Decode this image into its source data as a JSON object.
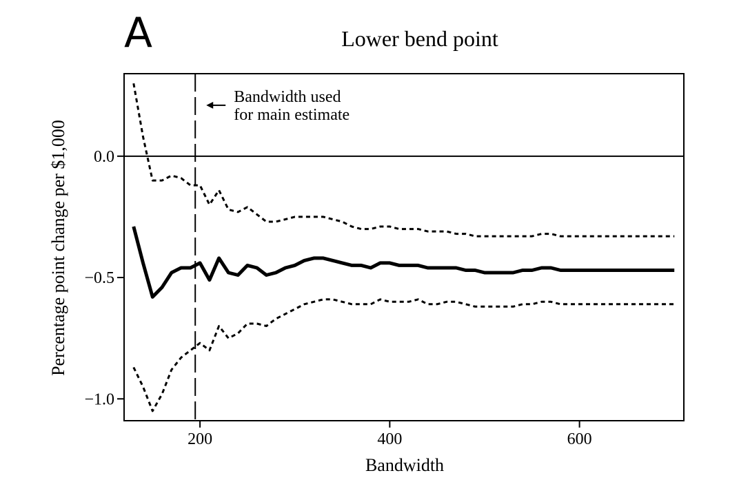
{
  "panel_label": "A",
  "chart_data": {
    "type": "line",
    "title": "Lower bend point",
    "xlabel": "Bandwidth",
    "ylabel": "Percentage point change per $1,000",
    "xlim": [
      120,
      710
    ],
    "ylim": [
      -1.09,
      0.34
    ],
    "xticks": [
      200,
      400,
      600
    ],
    "yticks": [
      0.0,
      -0.5,
      -1.0
    ],
    "ytick_labels": [
      "0.0",
      "−0.5",
      "−1.0"
    ],
    "reference_lines": {
      "horizontal_y": 0.0,
      "vertical_x": 195
    },
    "annotation": {
      "lines": [
        "Bandwidth used",
        "for main estimate"
      ],
      "arrow_to_x": 195,
      "at_y": 0.21
    },
    "series": [
      {
        "role": "estimate",
        "style": "solid-thick",
        "x": [
          130,
          140,
          150,
          160,
          170,
          180,
          190,
          200,
          210,
          220,
          230,
          240,
          250,
          260,
          270,
          280,
          290,
          300,
          310,
          320,
          330,
          340,
          350,
          360,
          370,
          380,
          390,
          400,
          410,
          420,
          430,
          440,
          450,
          460,
          470,
          480,
          490,
          500,
          510,
          520,
          530,
          540,
          550,
          560,
          570,
          580,
          590,
          600,
          610,
          620,
          630,
          640,
          650,
          660,
          670,
          680,
          690,
          700
        ],
        "y": [
          -0.29,
          -0.44,
          -0.58,
          -0.54,
          -0.48,
          -0.46,
          -0.46,
          -0.44,
          -0.51,
          -0.42,
          -0.48,
          -0.49,
          -0.45,
          -0.46,
          -0.49,
          -0.48,
          -0.46,
          -0.45,
          -0.43,
          -0.42,
          -0.42,
          -0.43,
          -0.44,
          -0.45,
          -0.45,
          -0.46,
          -0.44,
          -0.44,
          -0.45,
          -0.45,
          -0.45,
          -0.46,
          -0.46,
          -0.46,
          -0.46,
          -0.47,
          -0.47,
          -0.48,
          -0.48,
          -0.48,
          -0.48,
          -0.47,
          -0.47,
          -0.46,
          -0.46,
          -0.47,
          -0.47,
          -0.47,
          -0.47,
          -0.47,
          -0.47,
          -0.47,
          -0.47,
          -0.47,
          -0.47,
          -0.47,
          -0.47,
          -0.47
        ]
      },
      {
        "role": "upper-ci",
        "style": "dotted",
        "x": [
          130,
          140,
          150,
          160,
          170,
          180,
          190,
          200,
          210,
          220,
          230,
          240,
          250,
          260,
          270,
          280,
          290,
          300,
          310,
          320,
          330,
          340,
          350,
          360,
          370,
          380,
          390,
          400,
          410,
          420,
          430,
          440,
          450,
          460,
          470,
          480,
          490,
          500,
          510,
          520,
          530,
          540,
          550,
          560,
          570,
          580,
          590,
          600,
          610,
          620,
          630,
          640,
          650,
          660,
          670,
          680,
          690,
          700
        ],
        "y": [
          0.3,
          0.08,
          -0.1,
          -0.1,
          -0.08,
          -0.09,
          -0.12,
          -0.12,
          -0.2,
          -0.14,
          -0.22,
          -0.23,
          -0.21,
          -0.24,
          -0.27,
          -0.27,
          -0.26,
          -0.25,
          -0.25,
          -0.25,
          -0.25,
          -0.26,
          -0.27,
          -0.29,
          -0.3,
          -0.3,
          -0.29,
          -0.29,
          -0.3,
          -0.3,
          -0.3,
          -0.31,
          -0.31,
          -0.31,
          -0.32,
          -0.32,
          -0.33,
          -0.33,
          -0.33,
          -0.33,
          -0.33,
          -0.33,
          -0.33,
          -0.32,
          -0.32,
          -0.33,
          -0.33,
          -0.33,
          -0.33,
          -0.33,
          -0.33,
          -0.33,
          -0.33,
          -0.33,
          -0.33,
          -0.33,
          -0.33,
          -0.33
        ]
      },
      {
        "role": "lower-ci",
        "style": "dotted",
        "x": [
          130,
          140,
          150,
          160,
          170,
          180,
          190,
          200,
          210,
          220,
          230,
          240,
          250,
          260,
          270,
          280,
          290,
          300,
          310,
          320,
          330,
          340,
          350,
          360,
          370,
          380,
          390,
          400,
          410,
          420,
          430,
          440,
          450,
          460,
          470,
          480,
          490,
          500,
          510,
          520,
          530,
          540,
          550,
          560,
          570,
          580,
          590,
          600,
          610,
          620,
          630,
          640,
          650,
          660,
          670,
          680,
          690,
          700
        ],
        "y": [
          -0.87,
          -0.95,
          -1.05,
          -0.98,
          -0.88,
          -0.83,
          -0.8,
          -0.77,
          -0.8,
          -0.7,
          -0.75,
          -0.73,
          -0.69,
          -0.69,
          -0.7,
          -0.67,
          -0.65,
          -0.63,
          -0.61,
          -0.6,
          -0.59,
          -0.59,
          -0.6,
          -0.61,
          -0.61,
          -0.61,
          -0.59,
          -0.6,
          -0.6,
          -0.6,
          -0.59,
          -0.61,
          -0.61,
          -0.6,
          -0.6,
          -0.61,
          -0.62,
          -0.62,
          -0.62,
          -0.62,
          -0.62,
          -0.61,
          -0.61,
          -0.6,
          -0.6,
          -0.61,
          -0.61,
          -0.61,
          -0.61,
          -0.61,
          -0.61,
          -0.61,
          -0.61,
          -0.61,
          -0.61,
          -0.61,
          -0.61,
          -0.61
        ]
      }
    ]
  }
}
